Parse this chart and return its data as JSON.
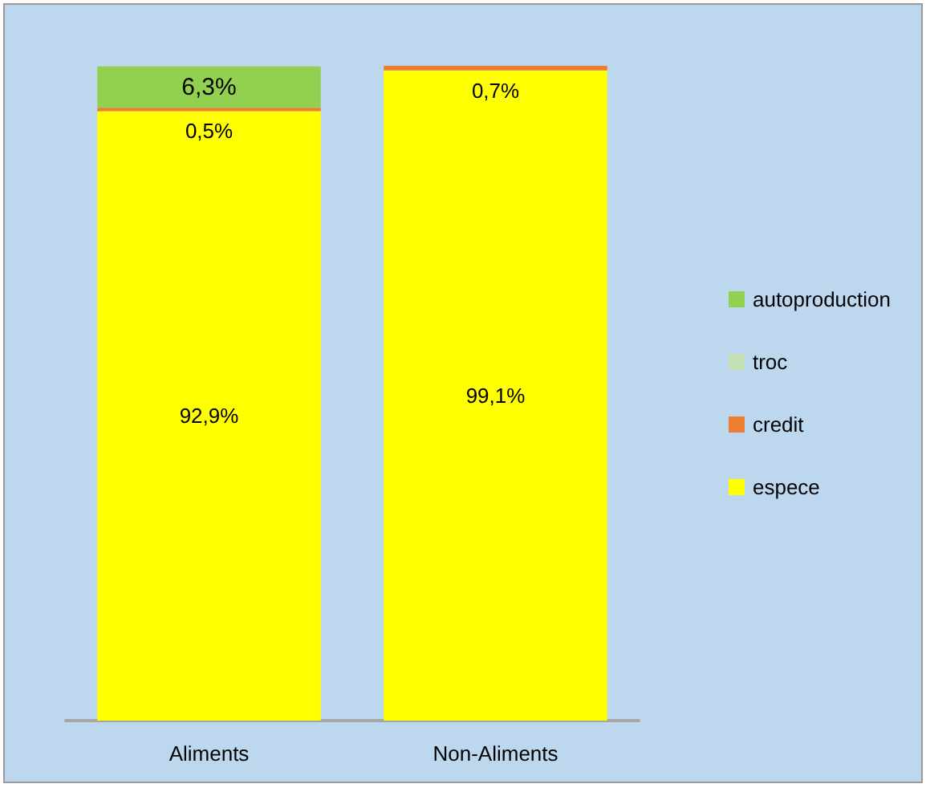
{
  "chart_data": {
    "type": "bar",
    "stacked": true,
    "categories": [
      "Aliments",
      "Non-Aliments"
    ],
    "series": [
      {
        "name": "espece",
        "color": "#ffff00",
        "values": [
          92.9,
          99.1
        ],
        "value_labels": [
          "92,9%",
          "99,1%"
        ]
      },
      {
        "name": "credit",
        "color": "#ed7d31",
        "values": [
          0.5,
          0.7
        ],
        "value_labels": [
          "0,5%",
          "0,7%"
        ]
      },
      {
        "name": "troc",
        "color": "#c5e0b4",
        "values": [
          null,
          null
        ],
        "value_labels": [
          null,
          null
        ]
      },
      {
        "name": "autoproduction",
        "color": "#92d050",
        "values": [
          6.3,
          null
        ],
        "value_labels": [
          "6,3%",
          null
        ]
      }
    ],
    "legend": "right"
  }
}
